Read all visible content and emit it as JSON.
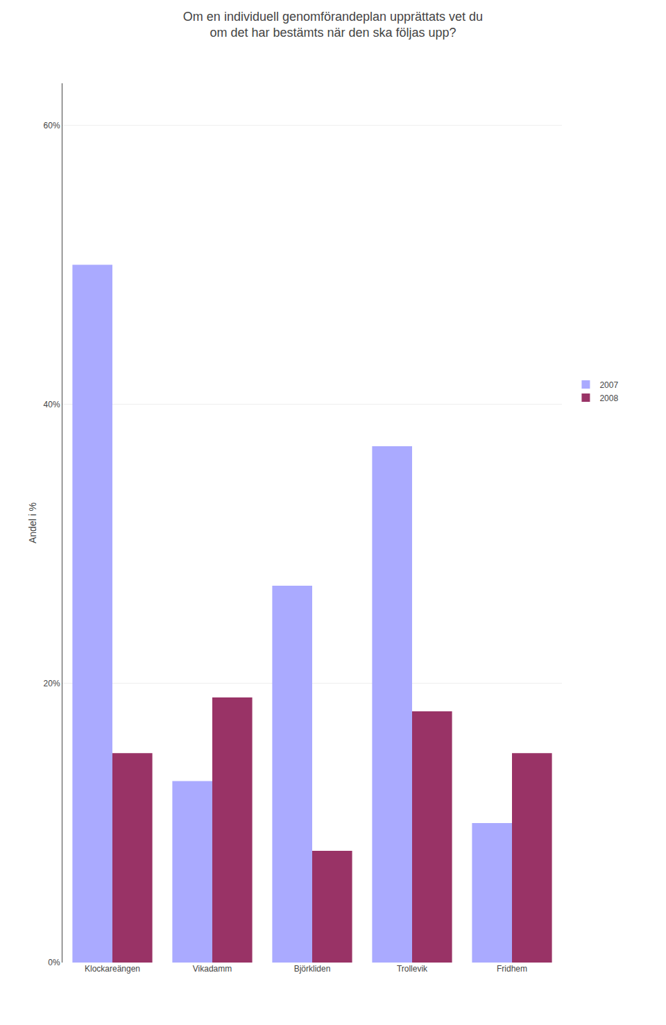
{
  "chart_data": {
    "type": "bar",
    "title": "Om en individuell genomförandeplan upprättats vet du\nom det har bestämts när den ska följas upp?",
    "ylabel": "Andel i %",
    "categories": [
      "Klockareängen",
      "Vikadamm",
      "Björkliden",
      "Trollevik",
      "Fridhem"
    ],
    "series": [
      {
        "name": "2007",
        "color": "#aaaaff",
        "values": [
          0.5,
          0.13,
          0.27,
          0.37,
          0.1
        ]
      },
      {
        "name": "2008",
        "color": "#993366",
        "values": [
          0.15,
          0.19,
          0.08,
          0.18,
          0.15
        ]
      }
    ],
    "ylim": [
      0,
      0.63
    ],
    "yticks": [
      {
        "value": 0.0,
        "label": "0%"
      },
      {
        "value": 0.2,
        "label": "20%"
      },
      {
        "value": 0.4,
        "label": "40%"
      },
      {
        "value": 0.6,
        "label": "60%"
      }
    ],
    "grid": true,
    "legend": "right"
  }
}
